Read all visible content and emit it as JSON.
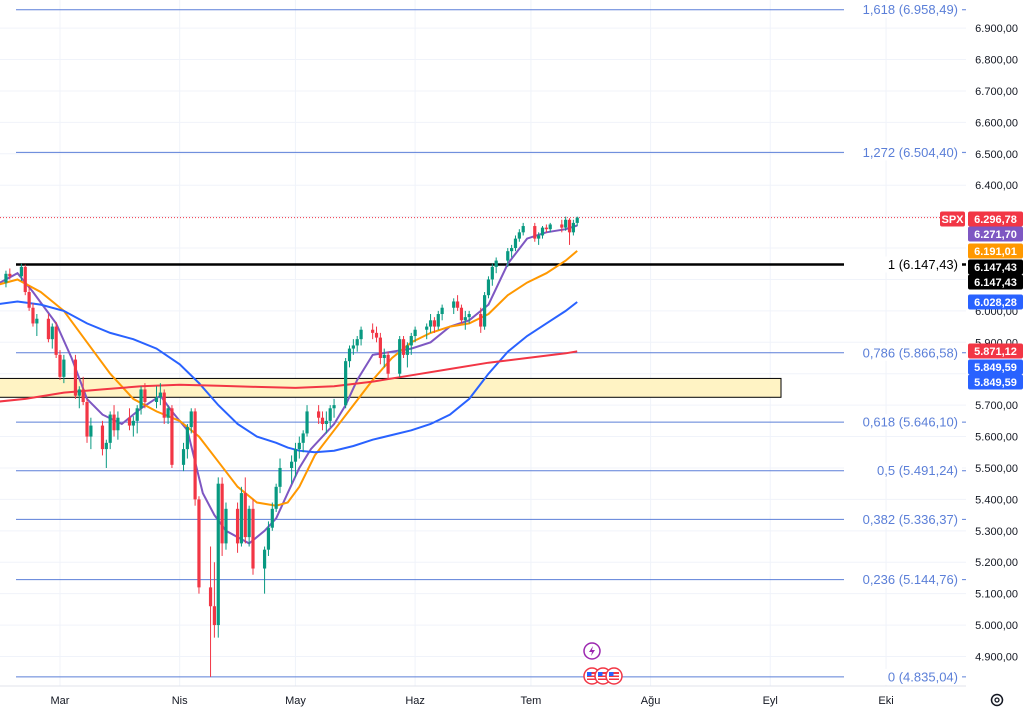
{
  "chart_data": {
    "type": "candlestick",
    "symbol": "SPX",
    "x_months": [
      "Mar",
      "Nis",
      "May",
      "Haz",
      "Tem",
      "Ağu",
      "Eyl",
      "Eki"
    ],
    "x_month_days": [
      59,
      90,
      120,
      151,
      181,
      212,
      243,
      273
    ],
    "ylim": [
      4800,
      7000
    ],
    "yticks": [
      4900,
      5000,
      5100,
      5200,
      5300,
      5400,
      5500,
      5600,
      5700,
      5800,
      5900,
      6000,
      6100,
      6200,
      6300,
      6400,
      6500,
      6600,
      6700,
      6800,
      6900
    ],
    "ytick_labels": [
      "4.900,00",
      "5.000,00",
      "5.100,00",
      "5.200,00",
      "5.300,00",
      "5.400,00",
      "5.500,00",
      "5.600,00",
      "5.700,00",
      "5.800,00",
      "5.900,00",
      "6.000,00",
      "6.100,00",
      "6.200,00",
      "6.300,00",
      "6.400,00",
      "6.500,00",
      "6.600,00",
      "6.700,00",
      "6.800,00",
      "6.900,00"
    ],
    "fibonacci": [
      {
        "ratio": "1,618",
        "value": 6958.49,
        "label": "1,618 (6.958,49)"
      },
      {
        "ratio": "1,272",
        "value": 6504.4,
        "label": "1,272 (6.504,40)"
      },
      {
        "ratio": "1",
        "value": 6147.43,
        "label": "1 (6.147,43)"
      },
      {
        "ratio": "0,786",
        "value": 5866.58,
        "label": "0,786 (5.866,58)"
      },
      {
        "ratio": "0,618",
        "value": 5646.1,
        "label": "0,618 (5.646,10)"
      },
      {
        "ratio": "0,5",
        "value": 5491.24,
        "label": "0,5 (5.491,24)"
      },
      {
        "ratio": "0,382",
        "value": 5336.37,
        "label": "0,382 (5.336,37)"
      },
      {
        "ratio": "0,236",
        "value": 5144.76,
        "label": "0,236 (5.144,76)"
      },
      {
        "ratio": "0",
        "value": 4835.04,
        "label": "0 (4.835,04)"
      }
    ],
    "support_zone": [
      5725,
      5785
    ],
    "price_badges": [
      {
        "text": "SPX",
        "value": 6296.78,
        "color": "#f23645"
      },
      {
        "text": "6.296,78",
        "value": 6296.78,
        "color": "#f23645"
      },
      {
        "text": "6.271,70",
        "value": 6271.7,
        "color": "#7e57c2"
      },
      {
        "text": "6.191,01",
        "value": 6191.01,
        "color": "#ff9800"
      },
      {
        "text": "6.147,43",
        "value": 6147.43,
        "color": "#000000"
      },
      {
        "text": "6.147,43",
        "value": 6147.43,
        "color": "#000000"
      },
      {
        "text": "6.028,28",
        "value": 6028.28,
        "color": "#2962ff"
      },
      {
        "text": "5.871,12",
        "value": 5871.12,
        "color": "#f23645"
      },
      {
        "text": "5.849,59",
        "value": 5849.59,
        "color": "#2962ff"
      },
      {
        "text": "5.849,59",
        "value": 5849.59,
        "color": "#2962ff"
      }
    ],
    "candles": [
      [
        45,
        6090,
        6128,
        6075,
        6118
      ],
      [
        46,
        6118,
        6135,
        6100,
        6110
      ],
      [
        49,
        6110,
        6150,
        6095,
        6140
      ],
      [
        50,
        6140,
        6147,
        6050,
        6060
      ],
      [
        51,
        6060,
        6080,
        6000,
        6010
      ],
      [
        52,
        6010,
        6025,
        5950,
        5960
      ],
      [
        53,
        5960,
        5990,
        5920,
        5975
      ],
      [
        56,
        5975,
        5990,
        5900,
        5910
      ],
      [
        57,
        5910,
        5960,
        5880,
        5950
      ],
      [
        58,
        5950,
        5965,
        5850,
        5860
      ],
      [
        59,
        5860,
        5875,
        5780,
        5790
      ],
      [
        60,
        5790,
        5860,
        5770,
        5845
      ],
      [
        63,
        5845,
        5860,
        5720,
        5730
      ],
      [
        64,
        5730,
        5760,
        5690,
        5750
      ],
      [
        65,
        5750,
        5790,
        5700,
        5710
      ],
      [
        66,
        5710,
        5720,
        5580,
        5600
      ],
      [
        67,
        5600,
        5660,
        5560,
        5635
      ],
      [
        70,
        5635,
        5650,
        5540,
        5560
      ],
      [
        71,
        5560,
        5590,
        5500,
        5580
      ],
      [
        72,
        5580,
        5680,
        5560,
        5670
      ],
      [
        73,
        5670,
        5700,
        5600,
        5620
      ],
      [
        74,
        5620,
        5680,
        5590,
        5660
      ],
      [
        77,
        5660,
        5690,
        5620,
        5635
      ],
      [
        78,
        5635,
        5665,
        5600,
        5650
      ],
      [
        79,
        5650,
        5700,
        5610,
        5690
      ],
      [
        80,
        5690,
        5760,
        5670,
        5750
      ],
      [
        81,
        5750,
        5770,
        5690,
        5710
      ],
      [
        84,
        5710,
        5760,
        5690,
        5725
      ],
      [
        85,
        5725,
        5770,
        5700,
        5740
      ],
      [
        86,
        5740,
        5750,
        5640,
        5660
      ],
      [
        87,
        5660,
        5700,
        5640,
        5690
      ],
      [
        88,
        5690,
        5700,
        5500,
        5510
      ],
      [
        91,
        5510,
        5580,
        5490,
        5560
      ],
      [
        92,
        5560,
        5640,
        5530,
        5630
      ],
      [
        93,
        5630,
        5690,
        5610,
        5680
      ],
      [
        94,
        5680,
        5690,
        5380,
        5400
      ],
      [
        95,
        5400,
        5410,
        5100,
        5120
      ],
      [
        98,
        5120,
        5250,
        4835,
        5060
      ],
      [
        99,
        5060,
        5200,
        4960,
        5000
      ],
      [
        100,
        5000,
        5470,
        4960,
        5450
      ],
      [
        101,
        5450,
        5470,
        5220,
        5260
      ],
      [
        102,
        5260,
        5390,
        5240,
        5370
      ],
      [
        105,
        5370,
        5390,
        5230,
        5260
      ],
      [
        106,
        5260,
        5440,
        5250,
        5420
      ],
      [
        107,
        5420,
        5470,
        5260,
        5280
      ],
      [
        108,
        5280,
        5380,
        5250,
        5370
      ],
      [
        109,
        5370,
        5400,
        5160,
        5180
      ],
      [
        112,
        5180,
        5250,
        5100,
        5240
      ],
      [
        113,
        5240,
        5330,
        5220,
        5310
      ],
      [
        114,
        5310,
        5390,
        5300,
        5370
      ],
      [
        115,
        5370,
        5450,
        5360,
        5440
      ],
      [
        116,
        5440,
        5530,
        5420,
        5500
      ],
      [
        119,
        5500,
        5540,
        5450,
        5520
      ],
      [
        120,
        5520,
        5580,
        5470,
        5560
      ],
      [
        121,
        5560,
        5600,
        5530,
        5580
      ],
      [
        122,
        5580,
        5620,
        5550,
        5610
      ],
      [
        123,
        5610,
        5700,
        5600,
        5680
      ],
      [
        126,
        5680,
        5700,
        5640,
        5660
      ],
      [
        127,
        5660,
        5680,
        5620,
        5640
      ],
      [
        128,
        5640,
        5680,
        5610,
        5650
      ],
      [
        129,
        5650,
        5700,
        5630,
        5690
      ],
      [
        130,
        5690,
        5720,
        5660,
        5700
      ],
      [
        133,
        5700,
        5850,
        5690,
        5840
      ],
      [
        134,
        5840,
        5890,
        5820,
        5880
      ],
      [
        135,
        5880,
        5910,
        5860,
        5890
      ],
      [
        136,
        5890,
        5920,
        5870,
        5910
      ],
      [
        137,
        5910,
        5950,
        5890,
        5940
      ],
      [
        140,
        5940,
        5960,
        5910,
        5930
      ],
      [
        141,
        5930,
        5950,
        5900,
        5915
      ],
      [
        142,
        5915,
        5930,
        5830,
        5850
      ],
      [
        143,
        5850,
        5880,
        5820,
        5860
      ],
      [
        144,
        5860,
        5870,
        5780,
        5800
      ],
      [
        147,
        5800,
        5920,
        5790,
        5910
      ],
      [
        148,
        5910,
        5920,
        5850,
        5860
      ],
      [
        149,
        5860,
        5900,
        5820,
        5890
      ],
      [
        150,
        5890,
        5930,
        5860,
        5920
      ],
      [
        151,
        5920,
        5950,
        5900,
        5940
      ],
      [
        154,
        5940,
        5960,
        5910,
        5950
      ],
      [
        155,
        5950,
        5990,
        5930,
        5970
      ],
      [
        156,
        5970,
        5980,
        5930,
        5950
      ],
      [
        157,
        5950,
        6000,
        5940,
        5990
      ],
      [
        158,
        5990,
        6020,
        5970,
        6010
      ],
      [
        161,
        6010,
        6040,
        5990,
        6030
      ],
      [
        162,
        6030,
        6050,
        6000,
        6010
      ],
      [
        163,
        6010,
        6020,
        5960,
        5970
      ],
      [
        164,
        5970,
        6000,
        5940,
        5980
      ],
      [
        165,
        5980,
        6000,
        5960,
        5990
      ],
      [
        168,
        5990,
        6010,
        5930,
        5950
      ],
      [
        169,
        5950,
        6060,
        5940,
        6050
      ],
      [
        170,
        6050,
        6110,
        6040,
        6100
      ],
      [
        171,
        6100,
        6150,
        6080,
        6140
      ],
      [
        172,
        6140,
        6170,
        6120,
        6160
      ],
      [
        175,
        6160,
        6200,
        6140,
        6190
      ],
      [
        176,
        6190,
        6210,
        6170,
        6200
      ],
      [
        177,
        6200,
        6240,
        6190,
        6230
      ],
      [
        178,
        6230,
        6260,
        6220,
        6250
      ],
      [
        179,
        6250,
        6280,
        6240,
        6270
      ],
      [
        182,
        6270,
        6280,
        6220,
        6230
      ],
      [
        183,
        6230,
        6250,
        6210,
        6240
      ],
      [
        184,
        6240,
        6270,
        6230,
        6265
      ],
      [
        185,
        6265,
        6275,
        6250,
        6260
      ],
      [
        186,
        6260,
        6280,
        6250,
        6275
      ],
      [
        189,
        6275,
        6290,
        6250,
        6265
      ],
      [
        190,
        6265,
        6300,
        6255,
        6290
      ],
      [
        191,
        6290,
        6295,
        6210,
        6250
      ],
      [
        192,
        6250,
        6290,
        6240,
        6280
      ],
      [
        193,
        6280,
        6300,
        6270,
        6296.78
      ]
    ],
    "series": [
      {
        "name": "",
        "color": "#7e57c2",
        "values": [
          [
            42,
            6080
          ],
          [
            48,
            6120
          ],
          [
            52,
            6060
          ],
          [
            58,
            5960
          ],
          [
            62,
            5850
          ],
          [
            66,
            5720
          ],
          [
            70,
            5670
          ],
          [
            75,
            5640
          ],
          [
            80,
            5690
          ],
          [
            85,
            5730
          ],
          [
            88,
            5680
          ],
          [
            92,
            5620
          ],
          [
            96,
            5420
          ],
          [
            99,
            5350
          ],
          [
            102,
            5300
          ],
          [
            105,
            5280
          ],
          [
            108,
            5260
          ],
          [
            112,
            5300
          ],
          [
            115,
            5340
          ],
          [
            118,
            5420
          ],
          [
            121,
            5500
          ],
          [
            124,
            5560
          ],
          [
            127,
            5600
          ],
          [
            130,
            5640
          ],
          [
            133,
            5700
          ],
          [
            136,
            5780
          ],
          [
            140,
            5860
          ],
          [
            145,
            5870
          ],
          [
            150,
            5880
          ],
          [
            155,
            5900
          ],
          [
            160,
            5950
          ],
          [
            165,
            5970
          ],
          [
            170,
            6020
          ],
          [
            175,
            6150
          ],
          [
            180,
            6230
          ],
          [
            185,
            6250
          ],
          [
            190,
            6260
          ],
          [
            193,
            6271.7
          ]
        ]
      },
      {
        "name": "",
        "color": "#ff9800",
        "values": [
          [
            42,
            6080
          ],
          [
            48,
            6100
          ],
          [
            54,
            6060
          ],
          [
            60,
            6000
          ],
          [
            66,
            5900
          ],
          [
            72,
            5800
          ],
          [
            78,
            5720
          ],
          [
            84,
            5680
          ],
          [
            90,
            5650
          ],
          [
            95,
            5600
          ],
          [
            100,
            5520
          ],
          [
            105,
            5440
          ],
          [
            110,
            5390
          ],
          [
            115,
            5380
          ],
          [
            118,
            5390
          ],
          [
            121,
            5440
          ],
          [
            125,
            5540
          ],
          [
            130,
            5620
          ],
          [
            135,
            5700
          ],
          [
            140,
            5780
          ],
          [
            145,
            5850
          ],
          [
            150,
            5900
          ],
          [
            155,
            5930
          ],
          [
            160,
            5950
          ],
          [
            165,
            5960
          ],
          [
            170,
            5990
          ],
          [
            175,
            6050
          ],
          [
            180,
            6090
          ],
          [
            185,
            6120
          ],
          [
            190,
            6160
          ],
          [
            193,
            6191.01
          ]
        ]
      },
      {
        "name": "",
        "color": "#2962ff",
        "values": [
          [
            42,
            6020
          ],
          [
            48,
            6030
          ],
          [
            54,
            6020
          ],
          [
            60,
            6000
          ],
          [
            66,
            5960
          ],
          [
            72,
            5930
          ],
          [
            78,
            5910
          ],
          [
            84,
            5880
          ],
          [
            90,
            5830
          ],
          [
            95,
            5770
          ],
          [
            100,
            5700
          ],
          [
            105,
            5640
          ],
          [
            110,
            5600
          ],
          [
            115,
            5580
          ],
          [
            118,
            5565
          ],
          [
            121,
            5555
          ],
          [
            125,
            5550
          ],
          [
            130,
            5555
          ],
          [
            135,
            5570
          ],
          [
            140,
            5590
          ],
          [
            145,
            5605
          ],
          [
            150,
            5620
          ],
          [
            155,
            5640
          ],
          [
            160,
            5670
          ],
          [
            165,
            5720
          ],
          [
            170,
            5800
          ],
          [
            175,
            5870
          ],
          [
            180,
            5920
          ],
          [
            185,
            5960
          ],
          [
            190,
            6000
          ],
          [
            193,
            6028.28
          ]
        ]
      },
      {
        "name": "",
        "color": "#f23645",
        "values": [
          [
            42,
            5710
          ],
          [
            50,
            5720
          ],
          [
            60,
            5740
          ],
          [
            70,
            5750
          ],
          [
            80,
            5760
          ],
          [
            90,
            5765
          ],
          [
            100,
            5762
          ],
          [
            110,
            5758
          ],
          [
            120,
            5755
          ],
          [
            130,
            5760
          ],
          [
            140,
            5775
          ],
          [
            150,
            5795
          ],
          [
            160,
            5815
          ],
          [
            170,
            5835
          ],
          [
            180,
            5850
          ],
          [
            190,
            5865
          ],
          [
            193,
            5871.12
          ]
        ]
      }
    ]
  },
  "ui": {
    "settings_icon": "settings-icon",
    "event_icon": "lightning-icon",
    "flag_icon": "us-flag-icon"
  }
}
